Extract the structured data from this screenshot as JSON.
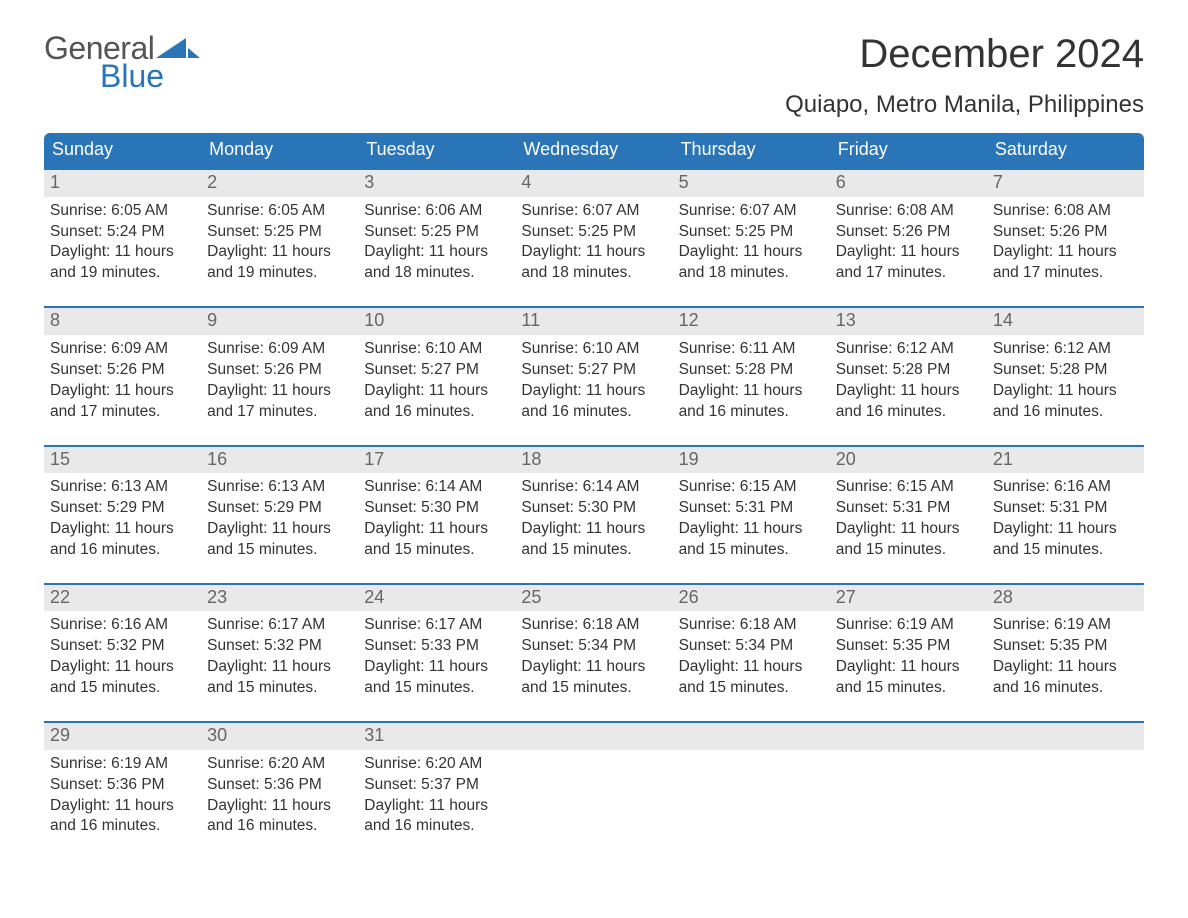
{
  "logo": {
    "word1": "General",
    "word2": "Blue",
    "sail_color": "#2a74b8",
    "text_gray": "#555555"
  },
  "title": "December 2024",
  "location": "Quiapo, Metro Manila, Philippines",
  "colors": {
    "header_bg": "#2a74b8",
    "header_text": "#ffffff",
    "day_strip_bg": "#e9e9e9",
    "day_strip_text": "#666666",
    "week_divider": "#2a74b8",
    "body_text": "#333333",
    "page_bg": "#ffffff"
  },
  "day_headers": [
    "Sunday",
    "Monday",
    "Tuesday",
    "Wednesday",
    "Thursday",
    "Friday",
    "Saturday"
  ],
  "weeks": [
    [
      {
        "n": "1",
        "sunrise": "Sunrise: 6:05 AM",
        "sunset": "Sunset: 5:24 PM",
        "d1": "Daylight: 11 hours",
        "d2": "and 19 minutes."
      },
      {
        "n": "2",
        "sunrise": "Sunrise: 6:05 AM",
        "sunset": "Sunset: 5:25 PM",
        "d1": "Daylight: 11 hours",
        "d2": "and 19 minutes."
      },
      {
        "n": "3",
        "sunrise": "Sunrise: 6:06 AM",
        "sunset": "Sunset: 5:25 PM",
        "d1": "Daylight: 11 hours",
        "d2": "and 18 minutes."
      },
      {
        "n": "4",
        "sunrise": "Sunrise: 6:07 AM",
        "sunset": "Sunset: 5:25 PM",
        "d1": "Daylight: 11 hours",
        "d2": "and 18 minutes."
      },
      {
        "n": "5",
        "sunrise": "Sunrise: 6:07 AM",
        "sunset": "Sunset: 5:25 PM",
        "d1": "Daylight: 11 hours",
        "d2": "and 18 minutes."
      },
      {
        "n": "6",
        "sunrise": "Sunrise: 6:08 AM",
        "sunset": "Sunset: 5:26 PM",
        "d1": "Daylight: 11 hours",
        "d2": "and 17 minutes."
      },
      {
        "n": "7",
        "sunrise": "Sunrise: 6:08 AM",
        "sunset": "Sunset: 5:26 PM",
        "d1": "Daylight: 11 hours",
        "d2": "and 17 minutes."
      }
    ],
    [
      {
        "n": "8",
        "sunrise": "Sunrise: 6:09 AM",
        "sunset": "Sunset: 5:26 PM",
        "d1": "Daylight: 11 hours",
        "d2": "and 17 minutes."
      },
      {
        "n": "9",
        "sunrise": "Sunrise: 6:09 AM",
        "sunset": "Sunset: 5:26 PM",
        "d1": "Daylight: 11 hours",
        "d2": "and 17 minutes."
      },
      {
        "n": "10",
        "sunrise": "Sunrise: 6:10 AM",
        "sunset": "Sunset: 5:27 PM",
        "d1": "Daylight: 11 hours",
        "d2": "and 16 minutes."
      },
      {
        "n": "11",
        "sunrise": "Sunrise: 6:10 AM",
        "sunset": "Sunset: 5:27 PM",
        "d1": "Daylight: 11 hours",
        "d2": "and 16 minutes."
      },
      {
        "n": "12",
        "sunrise": "Sunrise: 6:11 AM",
        "sunset": "Sunset: 5:28 PM",
        "d1": "Daylight: 11 hours",
        "d2": "and 16 minutes."
      },
      {
        "n": "13",
        "sunrise": "Sunrise: 6:12 AM",
        "sunset": "Sunset: 5:28 PM",
        "d1": "Daylight: 11 hours",
        "d2": "and 16 minutes."
      },
      {
        "n": "14",
        "sunrise": "Sunrise: 6:12 AM",
        "sunset": "Sunset: 5:28 PM",
        "d1": "Daylight: 11 hours",
        "d2": "and 16 minutes."
      }
    ],
    [
      {
        "n": "15",
        "sunrise": "Sunrise: 6:13 AM",
        "sunset": "Sunset: 5:29 PM",
        "d1": "Daylight: 11 hours",
        "d2": "and 16 minutes."
      },
      {
        "n": "16",
        "sunrise": "Sunrise: 6:13 AM",
        "sunset": "Sunset: 5:29 PM",
        "d1": "Daylight: 11 hours",
        "d2": "and 15 minutes."
      },
      {
        "n": "17",
        "sunrise": "Sunrise: 6:14 AM",
        "sunset": "Sunset: 5:30 PM",
        "d1": "Daylight: 11 hours",
        "d2": "and 15 minutes."
      },
      {
        "n": "18",
        "sunrise": "Sunrise: 6:14 AM",
        "sunset": "Sunset: 5:30 PM",
        "d1": "Daylight: 11 hours",
        "d2": "and 15 minutes."
      },
      {
        "n": "19",
        "sunrise": "Sunrise: 6:15 AM",
        "sunset": "Sunset: 5:31 PM",
        "d1": "Daylight: 11 hours",
        "d2": "and 15 minutes."
      },
      {
        "n": "20",
        "sunrise": "Sunrise: 6:15 AM",
        "sunset": "Sunset: 5:31 PM",
        "d1": "Daylight: 11 hours",
        "d2": "and 15 minutes."
      },
      {
        "n": "21",
        "sunrise": "Sunrise: 6:16 AM",
        "sunset": "Sunset: 5:31 PM",
        "d1": "Daylight: 11 hours",
        "d2": "and 15 minutes."
      }
    ],
    [
      {
        "n": "22",
        "sunrise": "Sunrise: 6:16 AM",
        "sunset": "Sunset: 5:32 PM",
        "d1": "Daylight: 11 hours",
        "d2": "and 15 minutes."
      },
      {
        "n": "23",
        "sunrise": "Sunrise: 6:17 AM",
        "sunset": "Sunset: 5:32 PM",
        "d1": "Daylight: 11 hours",
        "d2": "and 15 minutes."
      },
      {
        "n": "24",
        "sunrise": "Sunrise: 6:17 AM",
        "sunset": "Sunset: 5:33 PM",
        "d1": "Daylight: 11 hours",
        "d2": "and 15 minutes."
      },
      {
        "n": "25",
        "sunrise": "Sunrise: 6:18 AM",
        "sunset": "Sunset: 5:34 PM",
        "d1": "Daylight: 11 hours",
        "d2": "and 15 minutes."
      },
      {
        "n": "26",
        "sunrise": "Sunrise: 6:18 AM",
        "sunset": "Sunset: 5:34 PM",
        "d1": "Daylight: 11 hours",
        "d2": "and 15 minutes."
      },
      {
        "n": "27",
        "sunrise": "Sunrise: 6:19 AM",
        "sunset": "Sunset: 5:35 PM",
        "d1": "Daylight: 11 hours",
        "d2": "and 15 minutes."
      },
      {
        "n": "28",
        "sunrise": "Sunrise: 6:19 AM",
        "sunset": "Sunset: 5:35 PM",
        "d1": "Daylight: 11 hours",
        "d2": "and 16 minutes."
      }
    ],
    [
      {
        "n": "29",
        "sunrise": "Sunrise: 6:19 AM",
        "sunset": "Sunset: 5:36 PM",
        "d1": "Daylight: 11 hours",
        "d2": "and 16 minutes."
      },
      {
        "n": "30",
        "sunrise": "Sunrise: 6:20 AM",
        "sunset": "Sunset: 5:36 PM",
        "d1": "Daylight: 11 hours",
        "d2": "and 16 minutes."
      },
      {
        "n": "31",
        "sunrise": "Sunrise: 6:20 AM",
        "sunset": "Sunset: 5:37 PM",
        "d1": "Daylight: 11 hours",
        "d2": "and 16 minutes."
      },
      null,
      null,
      null,
      null
    ]
  ]
}
